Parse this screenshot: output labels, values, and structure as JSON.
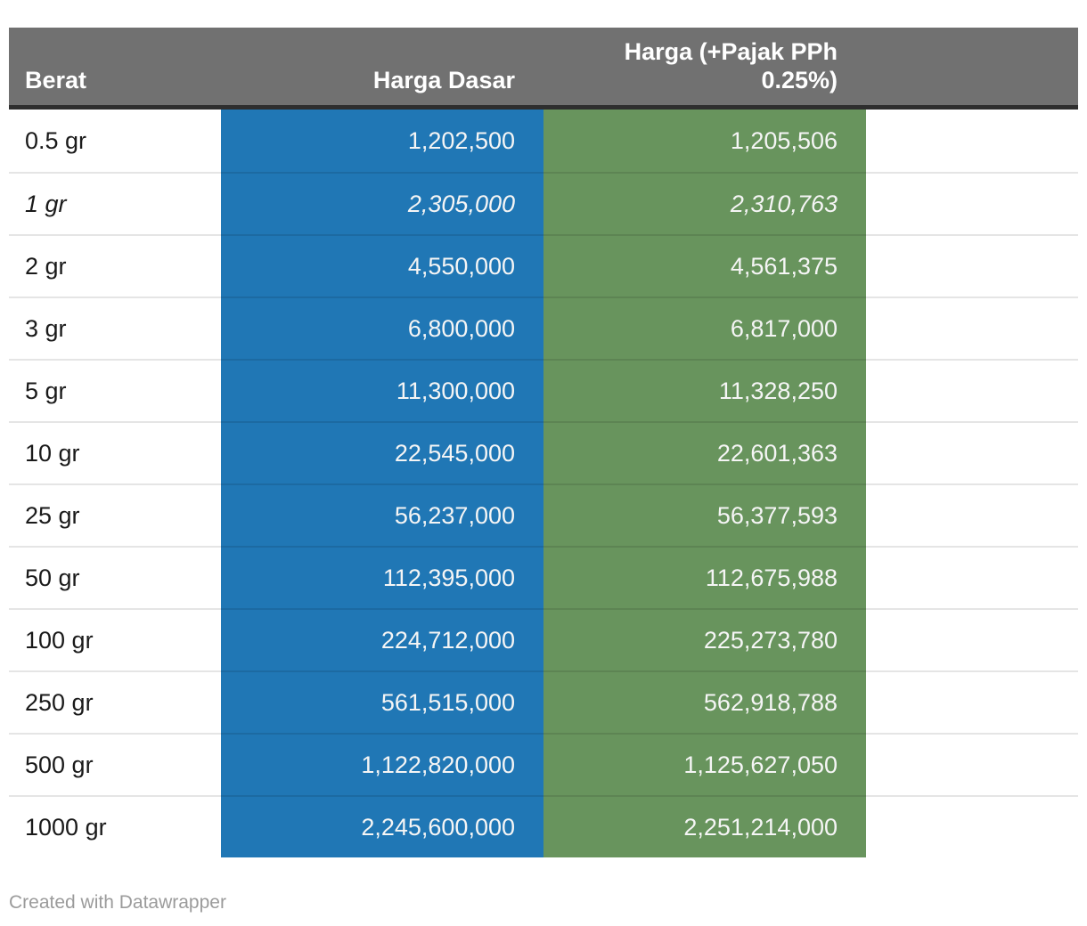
{
  "table": {
    "headers": {
      "berat": "Berat",
      "harga_dasar": "Harga Dasar",
      "harga_pajak_full": "Harga (+Pajak PPh 0.25%)",
      "harga_pajak_line1": "Harga (+Pajak PPh",
      "harga_pajak_line2": "0.25%)"
    },
    "rows": [
      {
        "berat": "0.5 gr",
        "harga_dasar": "1,202,500",
        "harga_pajak": "1,205,506"
      },
      {
        "berat": "1 gr",
        "harga_dasar": "2,305,000",
        "harga_pajak": "2,310,763"
      },
      {
        "berat": "2 gr",
        "harga_dasar": "4,550,000",
        "harga_pajak": "4,561,375"
      },
      {
        "berat": "3 gr",
        "harga_dasar": "6,800,000",
        "harga_pajak": "6,817,000"
      },
      {
        "berat": "5 gr",
        "harga_dasar": "11,300,000",
        "harga_pajak": "11,328,250"
      },
      {
        "berat": "10 gr",
        "harga_dasar": "22,545,000",
        "harga_pajak": "22,601,363"
      },
      {
        "berat": "25 gr",
        "harga_dasar": "56,237,000",
        "harga_pajak": "56,377,593"
      },
      {
        "berat": "50 gr",
        "harga_dasar": "112,395,000",
        "harga_pajak": "112,675,988"
      },
      {
        "berat": "100 gr",
        "harga_dasar": "224,712,000",
        "harga_pajak": "225,273,780"
      },
      {
        "berat": "250 gr",
        "harga_dasar": "561,515,000",
        "harga_pajak": "562,918,788"
      },
      {
        "berat": "500 gr",
        "harga_dasar": "1,122,820,000",
        "harga_pajak": "1,125,627,050"
      },
      {
        "berat": "1000 gr",
        "harga_dasar": "2,245,600,000",
        "harga_pajak": "2,251,214,000"
      }
    ],
    "italic_row_label": "1 gr"
  },
  "footer": {
    "credit": "Created with Datawrapper"
  },
  "colors": {
    "header_bg": "#717171",
    "header_text": "#ffffff",
    "header_bottom_border": "#2e2e2e",
    "harga_dasar_column": "#2077b5",
    "harga_pajak_column": "#68945d",
    "value_text": "#f5f5f5",
    "label_text": "#1a1a1a",
    "row_separator": "rgba(0,0,0,0.10)",
    "credit_text": "#9b9b9b"
  },
  "chart_data": {
    "type": "table",
    "title": "",
    "columns": [
      "Berat",
      "Harga Dasar",
      "Harga (+Pajak PPh 0.25%)"
    ],
    "rows": [
      [
        "0.5 gr",
        1202500,
        1205506
      ],
      [
        "1 gr",
        2305000,
        2310763
      ],
      [
        "2 gr",
        4550000,
        4561375
      ],
      [
        "3 gr",
        6800000,
        6817000
      ],
      [
        "5 gr",
        11300000,
        11328250
      ],
      [
        "10 gr",
        22545000,
        22601363
      ],
      [
        "25 gr",
        56237000,
        56377593
      ],
      [
        "50 gr",
        112395000,
        112675988
      ],
      [
        "100 gr",
        224712000,
        225273780
      ],
      [
        "250 gr",
        561515000,
        562918788
      ],
      [
        "500 gr",
        1122820000,
        1125627050
      ],
      [
        "1000 gr",
        2245600000,
        2251214000
      ]
    ],
    "layout_hints": {
      "harga_dasar_cells": "solid blue background, white right-aligned text",
      "harga_pajak_cells": "solid green background, white right-aligned text",
      "italic_rows": [
        "1 gr"
      ],
      "credit": "Created with Datawrapper"
    }
  }
}
